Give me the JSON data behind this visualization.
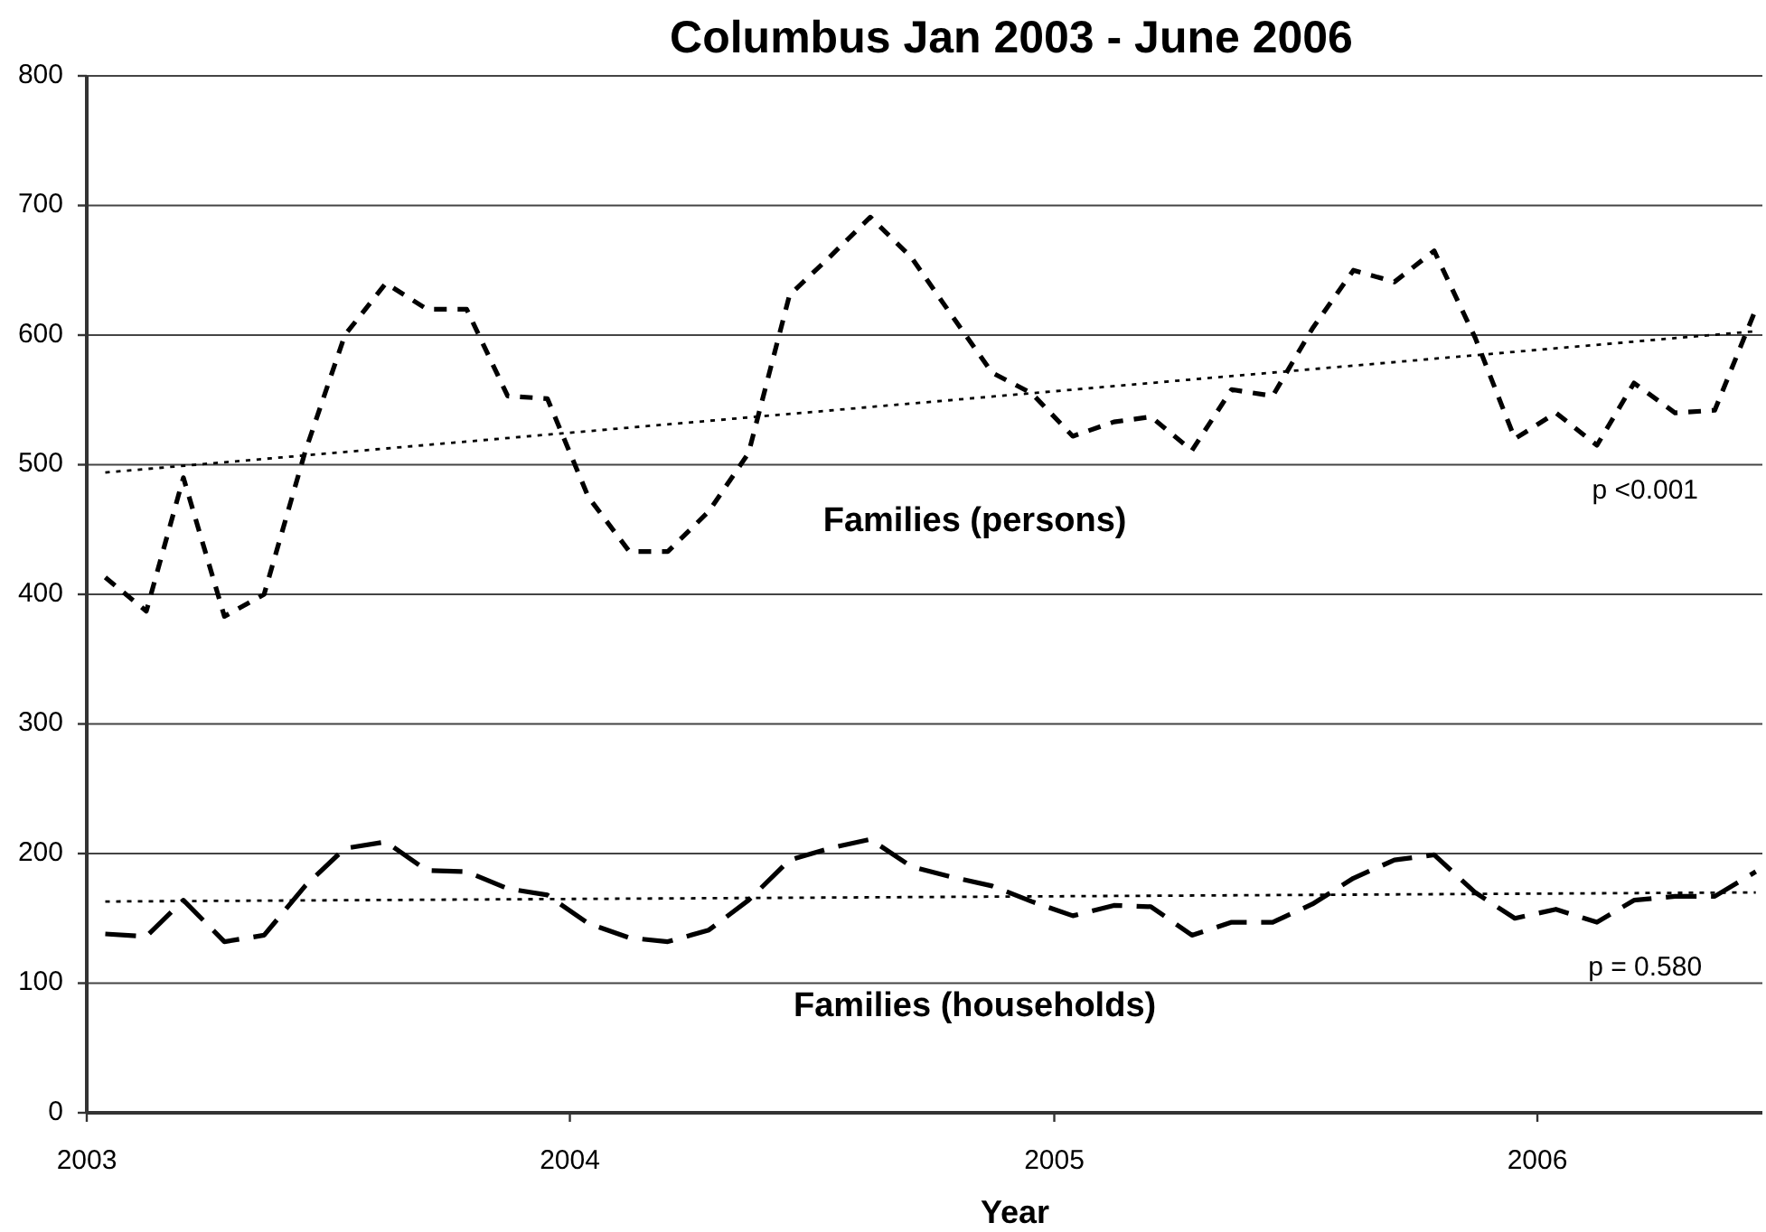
{
  "chart_data": {
    "type": "line",
    "title": "Columbus Jan 2003 - June 2006",
    "xlabel": "Year",
    "x": [
      "2003-01-15",
      "2003-02-15",
      "2003-03-15",
      "2003-04-15",
      "2003-05-15",
      "2003-06-15",
      "2003-07-15",
      "2003-08-15",
      "2003-09-15",
      "2003-10-15",
      "2003-11-15",
      "2003-12-15",
      "2004-01-15",
      "2004-02-15",
      "2004-03-15",
      "2004-04-15",
      "2004-05-15",
      "2004-06-15",
      "2004-07-15",
      "2004-08-15",
      "2004-09-15",
      "2004-10-15",
      "2004-11-15",
      "2004-12-15",
      "2005-01-15",
      "2005-02-15",
      "2005-03-15",
      "2005-04-15",
      "2005-05-15",
      "2005-06-15",
      "2005-07-15",
      "2005-08-15",
      "2005-09-15",
      "2005-10-15",
      "2005-11-15",
      "2005-12-15",
      "2006-01-15",
      "2006-02-15",
      "2006-03-15",
      "2006-04-15",
      "2006-05-15",
      "2006-06-15"
    ],
    "series": [
      {
        "name": "Families (persons)",
        "color": "#000000",
        "line_style": "dashed",
        "values": [
          413,
          387,
          490,
          383,
          400,
          510,
          600,
          640,
          620,
          620,
          553,
          551,
          475,
          433,
          433,
          464,
          509,
          631,
          660,
          691,
          660,
          616,
          571,
          555,
          522,
          533,
          537,
          511,
          558,
          553,
          605,
          650,
          641,
          665,
          598,
          520,
          540,
          515,
          563,
          540,
          542,
          620
        ]
      },
      {
        "name": "Families (households)",
        "color": "#000000",
        "line_style": "dashed",
        "values": [
          138,
          136,
          164,
          132,
          137,
          175,
          204,
          209,
          187,
          186,
          173,
          168,
          146,
          135,
          132,
          141,
          164,
          195,
          204,
          211,
          190,
          182,
          175,
          163,
          152,
          160,
          159,
          137,
          147,
          147,
          161,
          181,
          195,
          199,
          170,
          150,
          157,
          147,
          164,
          167,
          167,
          186
        ]
      },
      {
        "color": "#000000",
        "line_style": "dotted",
        "x": [
          "2003-01-15",
          "2006-06-15"
        ],
        "values": [
          494,
          603
        ]
      },
      {
        "color": "#000000",
        "line_style": "dotted",
        "x": [
          "2003-01-15",
          "2006-06-15"
        ],
        "values": [
          163,
          170
        ]
      }
    ],
    "xlim": [
      "2003-01-01",
      "2006-06-20"
    ],
    "xticks": [
      "2003",
      "2004",
      "2005",
      "2006"
    ],
    "ylim": [
      0,
      800
    ],
    "yticks": [
      0,
      100,
      200,
      300,
      400,
      500,
      600,
      700,
      800
    ],
    "grid": "y",
    "annotations": [
      "p <0.001",
      "p = 0.580"
    ]
  }
}
